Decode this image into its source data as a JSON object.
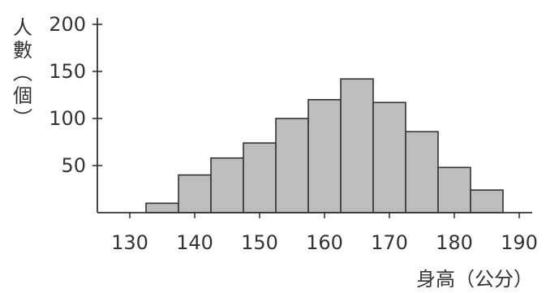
{
  "chart_data": {
    "type": "bar",
    "histogram": true,
    "bins": [
      {
        "from": 132.5,
        "to": 137.5,
        "value": 10
      },
      {
        "from": 137.5,
        "to": 142.5,
        "value": 40
      },
      {
        "from": 142.5,
        "to": 147.5,
        "value": 58
      },
      {
        "from": 147.5,
        "to": 152.5,
        "value": 74
      },
      {
        "from": 152.5,
        "to": 157.5,
        "value": 100
      },
      {
        "from": 157.5,
        "to": 162.5,
        "value": 120
      },
      {
        "from": 162.5,
        "to": 167.5,
        "value": 142
      },
      {
        "from": 167.5,
        "to": 172.5,
        "value": 117
      },
      {
        "from": 172.5,
        "to": 177.5,
        "value": 86
      },
      {
        "from": 177.5,
        "to": 182.5,
        "value": 48
      },
      {
        "from": 182.5,
        "to": 187.5,
        "value": 24
      }
    ],
    "xlabel": "身高（公分）",
    "ylabel": "人數（個）",
    "xticks": [
      "130",
      "140",
      "150",
      "160",
      "170",
      "180",
      "190"
    ],
    "yticks": [
      "50",
      "100",
      "150",
      "200"
    ],
    "xlim": [
      125,
      192
    ],
    "ylim": [
      0,
      200
    ],
    "grid": false,
    "colors": {
      "bar": "#bdbdbd",
      "edge": "#333333",
      "axis": "#333333"
    }
  }
}
